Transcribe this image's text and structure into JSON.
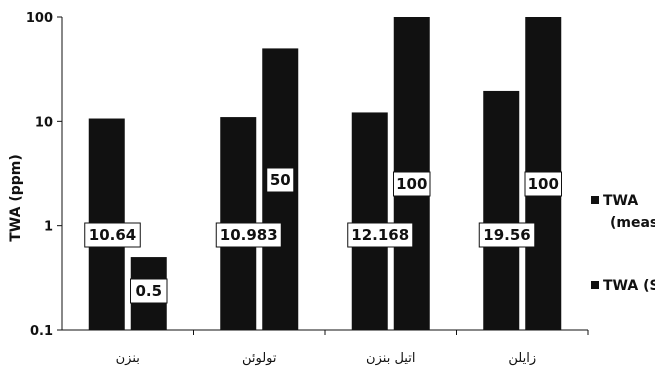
{
  "chart_data": {
    "type": "bar",
    "title": "",
    "xlabel": "",
    "ylabel": "TWA (ppm)",
    "yscale": "log",
    "ylim": [
      0.1,
      100
    ],
    "yticks": [
      "0.1",
      "1",
      "10",
      "100"
    ],
    "categories": [
      "بنزن",
      "تولوئن",
      "اتیل بنزن",
      "زایلن"
    ],
    "series": [
      {
        "name": "TWA (measured)",
        "values": [
          10.64,
          10.983,
          12.168,
          19.56
        ],
        "labels": [
          "10.64",
          "10.983",
          "12.168",
          "19.56"
        ]
      },
      {
        "name": "TWA (STD)",
        "values": [
          0.5,
          50,
          100,
          100
        ],
        "labels": [
          "0.5",
          "50",
          "100",
          "100"
        ]
      }
    ],
    "grid": false,
    "legend": "right",
    "bar_color": "#111111"
  }
}
